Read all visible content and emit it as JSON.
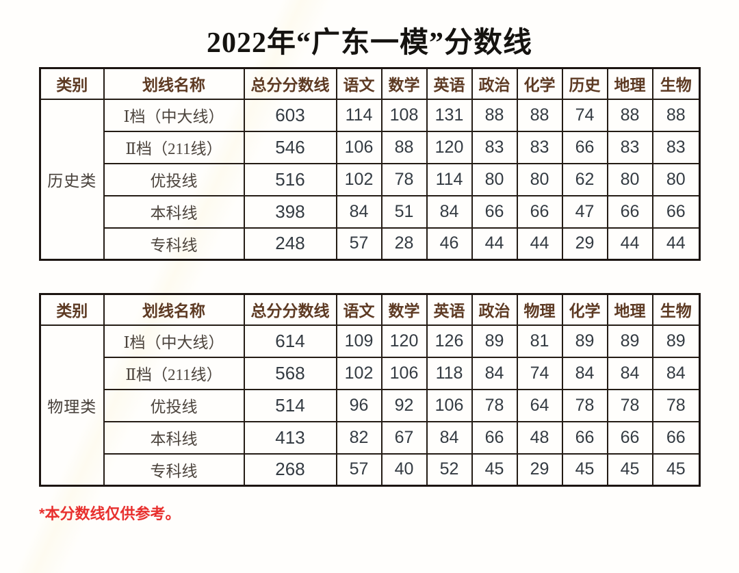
{
  "title": "2022年“广东一模”分数线",
  "footnote": "*本分数线仅供参考。",
  "colors": {
    "header_text": "#5d3a23",
    "body_text": "#343b42",
    "label_text": "#4c443d",
    "border": "#241c15",
    "footnote_red": "#e8302e",
    "background": "#fffefc"
  },
  "tables": [
    {
      "category": "历史类",
      "headers": [
        "类别",
        "划线名称",
        "总分分数线",
        "语文",
        "数学",
        "英语",
        "政治",
        "化学",
        "历史",
        "地理",
        "生物"
      ],
      "rows": [
        {
          "name": "Ⅰ档（中大线）",
          "values": [
            603,
            114,
            108,
            131,
            88,
            88,
            74,
            88,
            88
          ]
        },
        {
          "name": "Ⅱ档（211线）",
          "values": [
            546,
            106,
            88,
            120,
            83,
            83,
            66,
            83,
            83
          ]
        },
        {
          "name": "优投线",
          "values": [
            516,
            102,
            78,
            114,
            80,
            80,
            62,
            80,
            80
          ]
        },
        {
          "name": "本科线",
          "values": [
            398,
            84,
            51,
            84,
            66,
            66,
            47,
            66,
            66
          ]
        },
        {
          "name": "专科线",
          "values": [
            248,
            57,
            28,
            46,
            44,
            44,
            29,
            44,
            44
          ]
        }
      ]
    },
    {
      "category": "物理类",
      "headers": [
        "类别",
        "划线名称",
        "总分分数线",
        "语文",
        "数学",
        "英语",
        "政治",
        "物理",
        "化学",
        "地理",
        "生物"
      ],
      "rows": [
        {
          "name": "Ⅰ档（中大线）",
          "values": [
            614,
            109,
            120,
            126,
            89,
            81,
            89,
            89,
            89
          ]
        },
        {
          "name": "Ⅱ档（211线）",
          "values": [
            568,
            102,
            106,
            118,
            84,
            74,
            84,
            84,
            84
          ]
        },
        {
          "name": "优投线",
          "values": [
            514,
            96,
            92,
            106,
            78,
            64,
            78,
            78,
            78
          ]
        },
        {
          "name": "本科线",
          "values": [
            413,
            82,
            67,
            84,
            66,
            48,
            66,
            66,
            66
          ]
        },
        {
          "name": "专科线",
          "values": [
            268,
            57,
            40,
            52,
            45,
            29,
            45,
            45,
            45
          ]
        }
      ]
    }
  ]
}
